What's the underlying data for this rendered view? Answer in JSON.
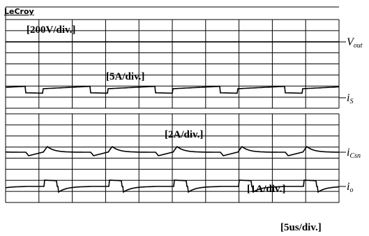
{
  "brand": "LeCroy",
  "scales": {
    "voltage": "[200V/div.]",
    "current_s": "[5A/div.]",
    "current_csn": "[2A/div.]",
    "current_o": "[1A/div.]",
    "time": "[5us/div.]"
  },
  "traces": [
    {
      "label": "V",
      "subscript": "out"
    },
    {
      "label": "i",
      "subscript": "S"
    },
    {
      "label": "i",
      "subscript": "Csn"
    },
    {
      "label": "i",
      "subscript": "o"
    }
  ]
}
